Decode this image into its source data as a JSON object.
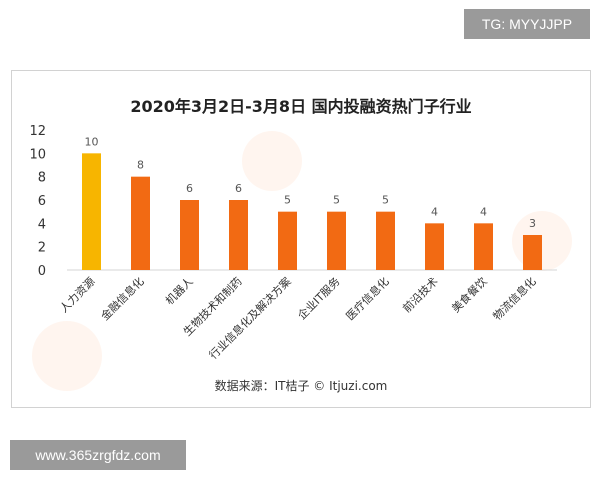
{
  "header": {
    "tg_label": "TG: MYYJJPP"
  },
  "footer": {
    "url_label": "www.365zrgfdz.com"
  },
  "source_note": "数据来源：IT桔子 © Itjuzi.com",
  "chart_data": {
    "type": "bar",
    "title": "2020年3月2日-3月8日  国内投融资热门子行业",
    "categories": [
      "人力资源",
      "金融信息化",
      "机器人",
      "生物技术和制药",
      "行业信息化及解决方案",
      "企业IT服务",
      "医疗信息化",
      "前沿技术",
      "美食餐饮",
      "物流信息化"
    ],
    "values": [
      10,
      8,
      6,
      6,
      5,
      5,
      5,
      4,
      4,
      3
    ],
    "ylim": [
      0,
      12
    ],
    "yticks": [
      0,
      2,
      4,
      6,
      8,
      10,
      12
    ],
    "grid": false,
    "highlight_color": "#f7b500",
    "bar_color": "#f26a13"
  }
}
